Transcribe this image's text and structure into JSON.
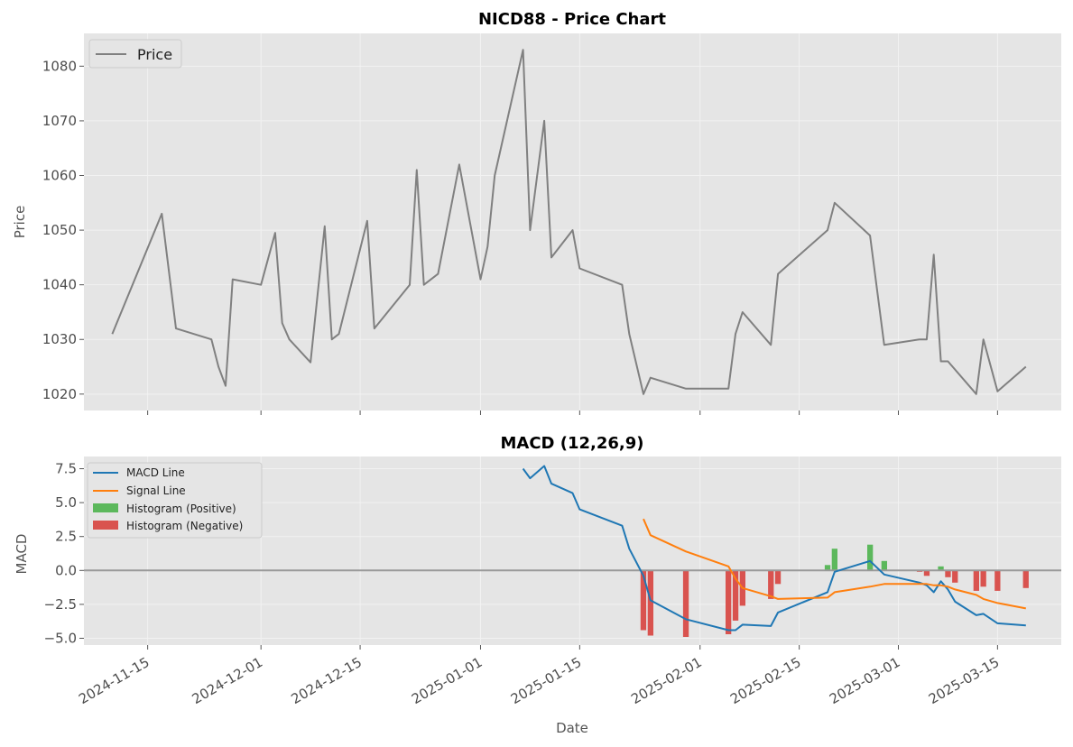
{
  "chart_data": [
    {
      "type": "line",
      "title": "NICD88 - Price Chart",
      "xlabel": "",
      "ylabel": "Price",
      "ylim": [
        1017,
        1086
      ],
      "yticks": [
        "1020",
        "1030",
        "1040",
        "1050",
        "1060",
        "1070",
        "1080"
      ],
      "xlim": [
        "2024-11-06",
        "2025-03-24"
      ],
      "grid": true,
      "legend": {
        "placement": "top-left",
        "entries": [
          "Price"
        ]
      },
      "colors": {
        "Price": "#808080"
      },
      "series": [
        {
          "name": "Price",
          "points": [
            [
              "2024-11-10",
              1031
            ],
            [
              "2024-11-17",
              1053
            ],
            [
              "2024-11-19",
              1032
            ],
            [
              "2024-11-24",
              1030
            ],
            [
              "2024-11-25",
              1025
            ],
            [
              "2024-11-26",
              1021.5
            ],
            [
              "2024-11-27",
              1041
            ],
            [
              "2024-12-01",
              1040
            ],
            [
              "2024-12-03",
              1049.5
            ],
            [
              "2024-12-04",
              1033
            ],
            [
              "2024-12-05",
              1030
            ],
            [
              "2024-12-08",
              1025.8
            ],
            [
              "2024-12-10",
              1050.7
            ],
            [
              "2024-12-11",
              1030
            ],
            [
              "2024-12-12",
              1031
            ],
            [
              "2024-12-16",
              1051.7
            ],
            [
              "2024-12-17",
              1032
            ],
            [
              "2024-12-22",
              1040
            ],
            [
              "2024-12-23",
              1061
            ],
            [
              "2024-12-24",
              1040
            ],
            [
              "2024-12-26",
              1042
            ],
            [
              "2024-12-29",
              1062
            ],
            [
              "2025-01-01",
              1041
            ],
            [
              "2025-01-02",
              1047
            ],
            [
              "2025-01-03",
              1060
            ],
            [
              "2025-01-07",
              1083
            ],
            [
              "2025-01-08",
              1050
            ],
            [
              "2025-01-10",
              1070
            ],
            [
              "2025-01-11",
              1045
            ],
            [
              "2025-01-14",
              1050
            ],
            [
              "2025-01-15",
              1043
            ],
            [
              "2025-01-21",
              1040
            ],
            [
              "2025-01-22",
              1031
            ],
            [
              "2025-01-24",
              1020
            ],
            [
              "2025-01-25",
              1023
            ],
            [
              "2025-01-30",
              1021
            ],
            [
              "2025-02-05",
              1021
            ],
            [
              "2025-02-06",
              1031
            ],
            [
              "2025-02-07",
              1035
            ],
            [
              "2025-02-11",
              1029
            ],
            [
              "2025-02-12",
              1042
            ],
            [
              "2025-02-19",
              1050
            ],
            [
              "2025-02-20",
              1055
            ],
            [
              "2025-02-25",
              1049
            ],
            [
              "2025-02-27",
              1029
            ],
            [
              "2025-03-04",
              1030
            ],
            [
              "2025-03-05",
              1030
            ],
            [
              "2025-03-06",
              1045.5
            ],
            [
              "2025-03-07",
              1026
            ],
            [
              "2025-03-08",
              1026
            ],
            [
              "2025-03-12",
              1020
            ],
            [
              "2025-03-13",
              1030
            ],
            [
              "2025-03-15",
              1020.5
            ],
            [
              "2025-03-19",
              1025
            ]
          ]
        }
      ]
    },
    {
      "type": "line",
      "title": "MACD (12,26,9)",
      "xlabel": "Date",
      "ylabel": "MACD",
      "ylim": [
        -5.5,
        8.4
      ],
      "yticks": [
        "7.5",
        "5.0",
        "2.5",
        "0.0",
        "−2.5",
        "−5.0"
      ],
      "xlim": [
        "2024-11-06",
        "2025-03-24"
      ],
      "xticks": [
        "2024-11-15",
        "2024-12-01",
        "2024-12-15",
        "2025-01-01",
        "2025-01-15",
        "2025-02-01",
        "2025-02-15",
        "2025-03-01",
        "2025-03-15"
      ],
      "zero_line": 0,
      "grid": true,
      "legend": {
        "placement": "top-left",
        "entries": [
          "MACD Line",
          "Signal Line",
          "Histogram (Positive)",
          "Histogram (Negative)"
        ]
      },
      "colors": {
        "MACD Line": "#1f77b4",
        "Signal Line": "#ff7f0e",
        "Histogram (Positive)": "#5cb85c",
        "Histogram (Negative)": "#d9534f",
        "Zero": "#999999"
      },
      "series": [
        {
          "name": "MACD Line",
          "points": [
            [
              "2025-01-07",
              7.5
            ],
            [
              "2025-01-08",
              6.8
            ],
            [
              "2025-01-10",
              7.7
            ],
            [
              "2025-01-11",
              6.4
            ],
            [
              "2025-01-14",
              5.7
            ],
            [
              "2025-01-15",
              4.5
            ],
            [
              "2025-01-21",
              3.3
            ],
            [
              "2025-01-22",
              1.6
            ],
            [
              "2025-01-24",
              -0.4
            ],
            [
              "2025-01-25",
              -2.2
            ],
            [
              "2025-01-30",
              -3.6
            ],
            [
              "2025-02-05",
              -4.4
            ],
            [
              "2025-02-06",
              -4.4
            ],
            [
              "2025-02-07",
              -4.0
            ],
            [
              "2025-02-11",
              -4.1
            ],
            [
              "2025-02-12",
              -3.1
            ],
            [
              "2025-02-19",
              -1.6
            ],
            [
              "2025-02-20",
              -0.1
            ],
            [
              "2025-02-25",
              0.7
            ],
            [
              "2025-02-27",
              -0.3
            ],
            [
              "2025-03-04",
              -0.9
            ],
            [
              "2025-03-05",
              -1.1
            ],
            [
              "2025-03-06",
              -1.6
            ],
            [
              "2025-03-07",
              -0.8
            ],
            [
              "2025-03-08",
              -1.4
            ],
            [
              "2025-03-09",
              -2.3
            ],
            [
              "2025-03-12",
              -3.3
            ],
            [
              "2025-03-13",
              -3.2
            ],
            [
              "2025-03-15",
              -3.9
            ],
            [
              "2025-03-19",
              -4.05
            ]
          ]
        },
        {
          "name": "Signal Line",
          "points": [
            [
              "2025-01-24",
              3.8
            ],
            [
              "2025-01-25",
              2.6
            ],
            [
              "2025-01-30",
              1.4
            ],
            [
              "2025-02-05",
              0.3
            ],
            [
              "2025-02-06",
              -0.6
            ],
            [
              "2025-02-07",
              -1.3
            ],
            [
              "2025-02-11",
              -1.9
            ],
            [
              "2025-02-12",
              -2.1
            ],
            [
              "2025-02-19",
              -2.0
            ],
            [
              "2025-02-20",
              -1.6
            ],
            [
              "2025-02-25",
              -1.2
            ],
            [
              "2025-02-27",
              -1.0
            ],
            [
              "2025-03-04",
              -1.0
            ],
            [
              "2025-03-05",
              -1.0
            ],
            [
              "2025-03-06",
              -1.1
            ],
            [
              "2025-03-07",
              -1.1
            ],
            [
              "2025-03-08",
              -1.2
            ],
            [
              "2025-03-09",
              -1.4
            ],
            [
              "2025-03-12",
              -1.8
            ],
            [
              "2025-03-13",
              -2.1
            ],
            [
              "2025-03-15",
              -2.4
            ],
            [
              "2025-03-19",
              -2.8
            ]
          ]
        },
        {
          "name": "Histogram",
          "bars": [
            [
              "2025-01-24",
              -4.4
            ],
            [
              "2025-01-25",
              -4.8
            ],
            [
              "2025-01-30",
              -4.9
            ],
            [
              "2025-02-05",
              -4.7
            ],
            [
              "2025-02-06",
              -3.7
            ],
            [
              "2025-02-07",
              -2.6
            ],
            [
              "2025-02-11",
              -2.1
            ],
            [
              "2025-02-12",
              -1.0
            ],
            [
              "2025-02-19",
              0.4
            ],
            [
              "2025-02-20",
              1.6
            ],
            [
              "2025-02-25",
              1.9
            ],
            [
              "2025-02-27",
              0.7
            ],
            [
              "2025-03-04",
              -0.1
            ],
            [
              "2025-03-05",
              -0.4
            ],
            [
              "2025-03-07",
              0.3
            ],
            [
              "2025-03-08",
              -0.5
            ],
            [
              "2025-03-09",
              -0.9
            ],
            [
              "2025-03-12",
              -1.5
            ],
            [
              "2025-03-13",
              -1.2
            ],
            [
              "2025-03-15",
              -1.5
            ],
            [
              "2025-03-19",
              -1.3
            ]
          ]
        }
      ]
    }
  ]
}
